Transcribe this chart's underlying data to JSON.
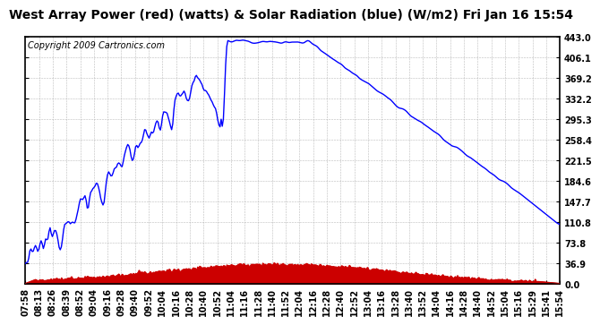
{
  "title": "West Array Power (red) (watts) & Solar Radiation (blue) (W/m2) Fri Jan 16 15:54",
  "copyright": "Copyright 2009 Cartronics.com",
  "background_color": "#ffffff",
  "plot_bg_color": "#ffffff",
  "grid_color": "#aaaaaa",
  "yticks": [
    0.0,
    36.9,
    73.8,
    110.8,
    147.7,
    184.6,
    221.5,
    258.4,
    295.3,
    332.2,
    369.2,
    406.1,
    443.0
  ],
  "ymax": 443.0,
  "ymin": 0.0,
  "x_labels": [
    "07:58",
    "08:13",
    "08:26",
    "08:39",
    "08:52",
    "09:04",
    "09:16",
    "09:28",
    "09:40",
    "09:52",
    "10:04",
    "10:16",
    "10:28",
    "10:40",
    "10:52",
    "11:04",
    "11:16",
    "11:28",
    "11:40",
    "11:52",
    "12:04",
    "12:16",
    "12:28",
    "12:40",
    "12:52",
    "13:04",
    "13:16",
    "13:28",
    "13:40",
    "13:52",
    "14:04",
    "14:16",
    "14:28",
    "14:40",
    "14:52",
    "15:04",
    "15:16",
    "15:29",
    "15:41",
    "15:54"
  ],
  "solar_color": "#0000ff",
  "power_color": "#cc0000",
  "title_fontsize": 10,
  "copyright_fontsize": 7,
  "tick_fontsize": 7,
  "outer_bg": "#ffffff"
}
